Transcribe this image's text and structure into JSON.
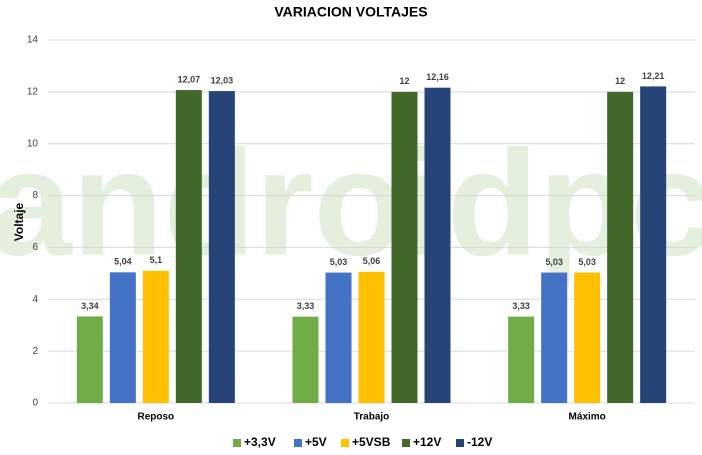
{
  "chart_data": {
    "type": "bar",
    "title": "VARIACION VOLTAJES",
    "y_label": "Voltaje",
    "watermark": "androidpc",
    "categories": [
      "Reposo",
      "Trabajo",
      "Máximo"
    ],
    "series": [
      {
        "name": "+3,3V",
        "color": "#70ad47",
        "values": [
          3.34,
          3.33,
          3.33
        ],
        "value_labels": [
          "3,34",
          "3,33",
          "3,33"
        ]
      },
      {
        "name": "+5V",
        "color": "#4472c4",
        "values": [
          5.04,
          5.03,
          5.03
        ],
        "value_labels": [
          "5,04",
          "5,03",
          "5,03"
        ]
      },
      {
        "name": "+5VSB",
        "color": "#ffc000",
        "values": [
          5.1,
          5.06,
          5.03
        ],
        "value_labels": [
          "5,1",
          "5,06",
          "5,03"
        ]
      },
      {
        "name": "+12V",
        "color": "#43682b",
        "values": [
          12.07,
          12,
          12
        ],
        "value_labels": [
          "12,07",
          "12",
          "12"
        ]
      },
      {
        "name": "-12V",
        "color": "#264478",
        "values": [
          12.03,
          12.16,
          12.21
        ],
        "value_labels": [
          "12,03",
          "12,16",
          "12,21"
        ]
      }
    ],
    "ylim": [
      0,
      14
    ],
    "yticks": [
      0,
      2,
      4,
      6,
      8,
      10,
      12,
      14
    ],
    "grid": true,
    "legend": "bottom"
  }
}
